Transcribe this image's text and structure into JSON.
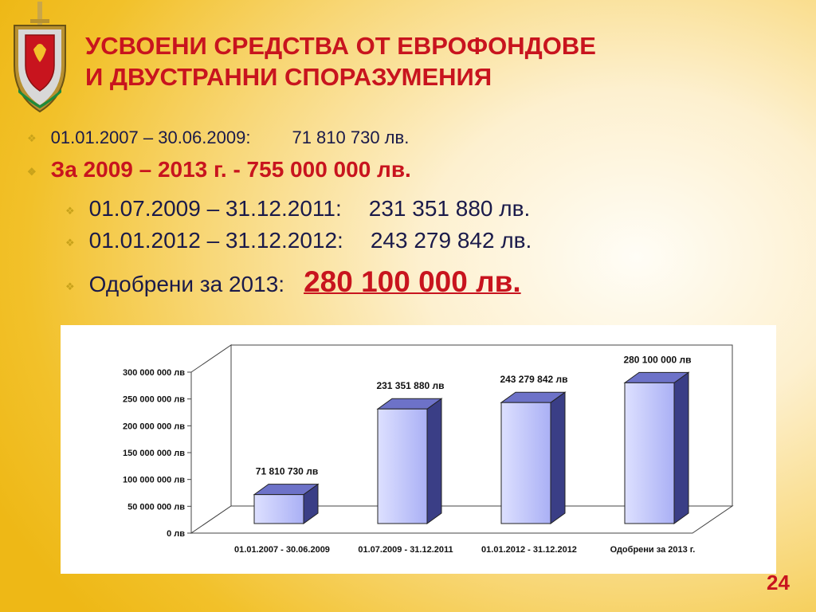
{
  "title": {
    "line1": "УСВОЕНИ СРЕДСТВА ОТ ЕВРОФОНДОВЕ",
    "line2": "И ДВУСТРАННИ СПОРАЗУМЕНИЯ"
  },
  "bullets": [
    {
      "label": "01.01.2007 – 30.06.2009:",
      "value": "71 810 730 лв."
    },
    {
      "label": "За 2009 – 2013 г.  -  755 000 000 лв."
    },
    {
      "label": "01.07.2009 – 31.12.2011:",
      "value": "231 351 880 лв."
    },
    {
      "label": "01.01.2012 – 31.12.2012:",
      "value": "243 279 842 лв."
    },
    {
      "label": "Одобрени за 2013:",
      "value": "280 100 000 лв."
    }
  ],
  "colors": {
    "accent": "#c8141e",
    "bar": "#aab0f5",
    "bar_dark": "#2e3270"
  },
  "chart_data": {
    "type": "bar",
    "categories": [
      "01.01.2007 - 30.06.2009",
      "01.07.2009 - 31.12.2011",
      "01.01.2012 - 31.12.2012",
      "Одобрени за 2013 г."
    ],
    "values": [
      71810730,
      231351880,
      243279842,
      280100000
    ],
    "data_labels": [
      "71 810 730 лв",
      "231 351 880 лв",
      "243 279 842 лв",
      "280 100 000 лв"
    ],
    "y_ticks": [
      0,
      50000000,
      100000000,
      150000000,
      200000000,
      250000000,
      300000000
    ],
    "y_tick_labels": [
      "0 лв",
      "50 000 000 лв",
      "100 000 000 лв",
      "150 000 000 лв",
      "200 000 000 лв",
      "250 000 000 лв",
      "300 000 000 лв"
    ],
    "ylim": [
      0,
      300000000
    ],
    "title": "",
    "xlabel": "",
    "ylabel": "",
    "grid": false,
    "legend": "none",
    "style": "3d"
  },
  "page_number": "24"
}
